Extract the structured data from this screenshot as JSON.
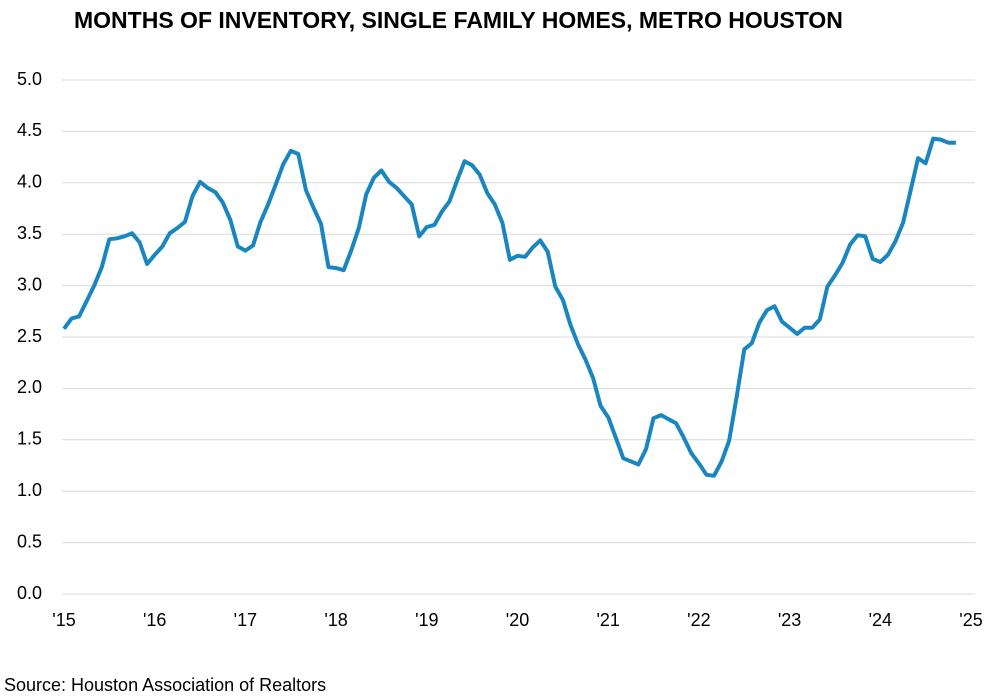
{
  "chart_data": {
    "type": "line",
    "title": "MONTHS OF INVENTORY, SINGLE FAMILY HOMES, METRO HOUSTON",
    "source": "Source: Houston Association of Realtors",
    "categories": [
      "'15",
      null,
      null,
      null,
      null,
      null,
      null,
      null,
      null,
      null,
      null,
      null,
      "'16",
      null,
      null,
      null,
      null,
      null,
      null,
      null,
      null,
      null,
      null,
      null,
      "'17",
      null,
      null,
      null,
      null,
      null,
      null,
      null,
      null,
      null,
      null,
      null,
      "'18",
      null,
      null,
      null,
      null,
      null,
      null,
      null,
      null,
      null,
      null,
      null,
      "'19",
      null,
      null,
      null,
      null,
      null,
      null,
      null,
      null,
      null,
      null,
      null,
      "'20",
      null,
      null,
      null,
      null,
      null,
      null,
      null,
      null,
      null,
      null,
      null,
      "'21",
      null,
      null,
      null,
      null,
      null,
      null,
      null,
      null,
      null,
      null,
      null,
      "'22",
      null,
      null,
      null,
      null,
      null,
      null,
      null,
      null,
      null,
      null,
      null,
      "'23",
      null,
      null,
      null,
      null,
      null,
      null,
      null,
      null,
      null,
      null,
      null,
      "'24",
      null,
      null,
      null,
      null,
      null,
      null,
      null,
      null,
      null,
      null,
      null,
      "'25"
    ],
    "series": [
      {
        "name": "Months of inventory",
        "color": "#1a86c0",
        "values": [
          2.58,
          2.68,
          2.7,
          2.85,
          3.0,
          3.18,
          3.45,
          3.46,
          3.48,
          3.51,
          3.42,
          3.21,
          3.3,
          3.38,
          3.51,
          3.56,
          3.62,
          3.87,
          4.01,
          3.95,
          3.91,
          3.81,
          3.64,
          3.38,
          3.34,
          3.39,
          3.62,
          3.79,
          3.98,
          4.18,
          4.31,
          4.28,
          3.93,
          3.76,
          3.6,
          3.18,
          3.17,
          3.15,
          3.34,
          3.56,
          3.89,
          4.05,
          4.12,
          4.01,
          3.95,
          3.87,
          3.79,
          3.48,
          3.57,
          3.59,
          3.72,
          3.82,
          4.02,
          4.21,
          4.17,
          4.08,
          3.9,
          3.79,
          3.61,
          3.25,
          3.29,
          3.28,
          3.37,
          3.44,
          3.33,
          2.99,
          2.86,
          2.62,
          2.43,
          2.28,
          2.1,
          1.83,
          1.72,
          1.52,
          1.32,
          1.29,
          1.26,
          1.41,
          1.71,
          1.74,
          1.7,
          1.66,
          1.52,
          1.37,
          1.27,
          1.16,
          1.15,
          1.29,
          1.49,
          1.92,
          2.38,
          2.44,
          2.64,
          2.76,
          2.8,
          2.65,
          2.59,
          2.53,
          2.59,
          2.59,
          2.67,
          2.99,
          3.1,
          3.22,
          3.4,
          3.49,
          3.48,
          3.26,
          3.23,
          3.3,
          3.43,
          3.61,
          3.92,
          4.24,
          4.19,
          4.43,
          4.42,
          4.39,
          4.39,
          null,
          null
        ]
      }
    ],
    "ylim": [
      0,
      5
    ],
    "yticks": [
      {
        "value": 0,
        "label": "0.0"
      },
      0.5,
      {
        "value": 1,
        "label": "1.0"
      },
      1.5,
      {
        "value": 2,
        "label": "2.0"
      },
      2.5,
      {
        "value": 3,
        "label": "3.0"
      },
      3.5,
      {
        "value": 4,
        "label": "4.0"
      },
      4.5,
      {
        "value": 5,
        "label": "5.0"
      }
    ],
    "grid": true
  }
}
